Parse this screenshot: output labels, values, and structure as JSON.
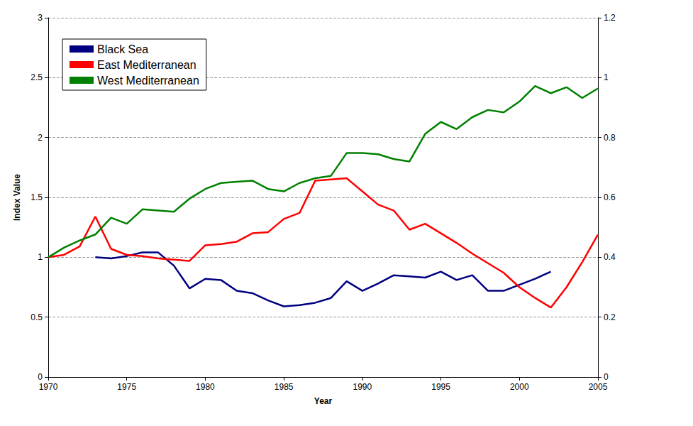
{
  "chart_data": {
    "type": "line",
    "x_label": "Year",
    "y_label": "Index Value",
    "x": [
      1970,
      1971,
      1972,
      1973,
      1974,
      1975,
      1976,
      1977,
      1978,
      1979,
      1980,
      1981,
      1982,
      1983,
      1984,
      1985,
      1986,
      1987,
      1988,
      1989,
      1990,
      1991,
      1992,
      1993,
      1994,
      1995,
      1996,
      1997,
      1998,
      1999,
      2000,
      2001,
      2002,
      2003,
      2004,
      2005
    ],
    "series": [
      {
        "name": "Black Sea",
        "color": "#000080",
        "values": [
          null,
          null,
          null,
          1.0,
          0.99,
          1.01,
          1.04,
          1.04,
          0.93,
          0.74,
          0.82,
          0.81,
          0.72,
          0.7,
          0.64,
          0.59,
          0.6,
          0.62,
          0.66,
          0.8,
          0.72,
          0.78,
          0.85,
          0.84,
          0.83,
          0.88,
          0.81,
          0.85,
          0.72,
          0.72,
          0.77,
          0.82,
          0.88,
          null,
          null,
          null
        ]
      },
      {
        "name": "East Mediterranean",
        "color": "#ff0000",
        "values": [
          1.0,
          1.02,
          1.09,
          1.34,
          1.07,
          1.02,
          1.01,
          0.99,
          0.98,
          0.97,
          1.1,
          1.11,
          1.13,
          1.2,
          1.21,
          1.32,
          1.37,
          1.64,
          1.65,
          1.66,
          1.55,
          1.44,
          1.39,
          1.23,
          1.28,
          1.2,
          1.12,
          1.03,
          0.95,
          0.87,
          0.75,
          0.66,
          0.58,
          0.75,
          0.96,
          1.19
        ]
      },
      {
        "name": "West Mediterranean",
        "color": "#008000",
        "values": [
          1.0,
          1.08,
          1.14,
          1.19,
          1.33,
          1.28,
          1.4,
          1.39,
          1.38,
          1.49,
          1.57,
          1.62,
          1.63,
          1.64,
          1.57,
          1.55,
          1.62,
          1.66,
          1.68,
          1.87,
          1.87,
          1.86,
          1.82,
          1.8,
          2.03,
          2.13,
          2.07,
          2.17,
          2.23,
          2.21,
          2.3,
          2.43,
          2.37,
          2.42,
          2.33,
          2.41
        ]
      }
    ],
    "xlim": [
      1970,
      2005
    ],
    "xticks": [
      1970,
      1975,
      1980,
      1985,
      1990,
      1995,
      2000,
      2005
    ],
    "ylim": [
      0,
      3
    ],
    "yticks": [
      0,
      0.5,
      1,
      1.5,
      2,
      2.5,
      3
    ],
    "y2lim": [
      0,
      1.2
    ],
    "y2ticks": [
      0,
      0.2,
      0.4,
      0.6,
      0.8,
      1,
      1.2
    ],
    "grid": true,
    "legend": "upper left"
  }
}
